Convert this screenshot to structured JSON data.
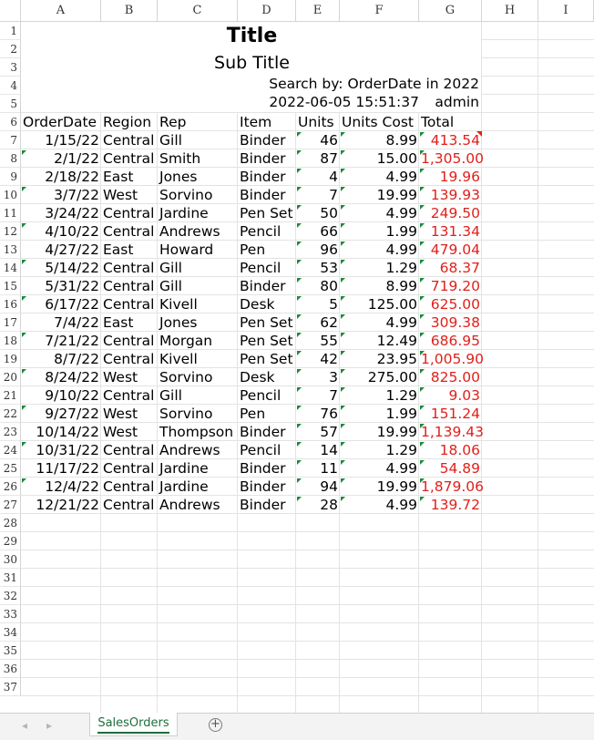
{
  "columns": [
    "A",
    "B",
    "C",
    "D",
    "E",
    "F",
    "G",
    "H",
    "I"
  ],
  "row_numbers": [
    "1",
    "2",
    "3",
    "4",
    "5",
    "6",
    "7",
    "8",
    "9",
    "10",
    "11",
    "12",
    "13",
    "14",
    "15",
    "16",
    "17",
    "18",
    "19",
    "20",
    "21",
    "22",
    "23",
    "24",
    "25",
    "26",
    "27",
    "28",
    "29",
    "30",
    "31",
    "32",
    "33",
    "34",
    "35",
    "36",
    "37"
  ],
  "report": {
    "title": "Title",
    "subtitle": "Sub Title",
    "search": "Search by: OrderDate in 2022",
    "timestamp": "2022-06-05 15:51:37",
    "user": "admin"
  },
  "table": {
    "headers": [
      "OrderDate",
      "Region",
      "Rep",
      "Item",
      "Units",
      "Units Cost",
      "Total"
    ],
    "rows": [
      [
        "1/15/22",
        "Central",
        "Gill",
        "Binder",
        "46",
        "8.99",
        "413.54"
      ],
      [
        "2/1/22",
        "Central",
        "Smith",
        "Binder",
        "87",
        "15.00",
        "1,305.00"
      ],
      [
        "2/18/22",
        "East",
        "Jones",
        "Binder",
        "4",
        "4.99",
        "19.96"
      ],
      [
        "3/7/22",
        "West",
        "Sorvino",
        "Binder",
        "7",
        "19.99",
        "139.93"
      ],
      [
        "3/24/22",
        "Central",
        "Jardine",
        "Pen Set",
        "50",
        "4.99",
        "249.50"
      ],
      [
        "4/10/22",
        "Central",
        "Andrews",
        "Pencil",
        "66",
        "1.99",
        "131.34"
      ],
      [
        "4/27/22",
        "East",
        "Howard",
        "Pen",
        "96",
        "4.99",
        "479.04"
      ],
      [
        "5/14/22",
        "Central",
        "Gill",
        "Pencil",
        "53",
        "1.29",
        "68.37"
      ],
      [
        "5/31/22",
        "Central",
        "Gill",
        "Binder",
        "80",
        "8.99",
        "719.20"
      ],
      [
        "6/17/22",
        "Central",
        "Kivell",
        "Desk",
        "5",
        "125.00",
        "625.00"
      ],
      [
        "7/4/22",
        "East",
        "Jones",
        "Pen Set",
        "62",
        "4.99",
        "309.38"
      ],
      [
        "7/21/22",
        "Central",
        "Morgan",
        "Pen Set",
        "55",
        "12.49",
        "686.95"
      ],
      [
        "8/7/22",
        "Central",
        "Kivell",
        "Pen Set",
        "42",
        "23.95",
        "1,005.90"
      ],
      [
        "8/24/22",
        "West",
        "Sorvino",
        "Desk",
        "3",
        "275.00",
        "825.00"
      ],
      [
        "9/10/22",
        "Central",
        "Gill",
        "Pencil",
        "7",
        "1.29",
        "9.03"
      ],
      [
        "9/27/22",
        "West",
        "Sorvino",
        "Pen",
        "76",
        "1.99",
        "151.24"
      ],
      [
        "10/14/22",
        "West",
        "Thompson",
        "Binder",
        "57",
        "19.99",
        "1,139.43"
      ],
      [
        "10/31/22",
        "Central",
        "Andrews",
        "Pencil",
        "14",
        "1.29",
        "18.06"
      ],
      [
        "11/17/22",
        "Central",
        "Jardine",
        "Binder",
        "11",
        "4.99",
        "54.89"
      ],
      [
        "12/4/22",
        "Central",
        "Jardine",
        "Binder",
        "94",
        "19.99",
        "1,879.06"
      ],
      [
        "12/21/22",
        "Central",
        "Andrews",
        "Binder",
        "28",
        "4.99",
        "139.72"
      ]
    ]
  },
  "sheet_tab": {
    "label": "SalesOrders",
    "add_icon": "plus-circle-icon"
  },
  "colors": {
    "total_text": "#e0201b",
    "indicator": "#1a8a3a",
    "tab_accent": "#1e6e3b"
  }
}
